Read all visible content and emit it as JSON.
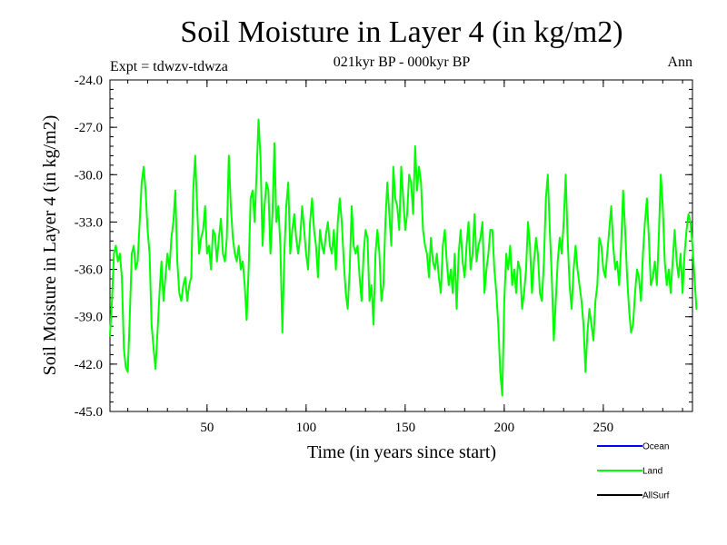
{
  "chart_data": {
    "type": "line",
    "title": "Soil Moisture in Layer 4 (in kg/m2)",
    "subtitle_center": "021kyr BP - 000kyr BP",
    "subtitle_left": "Expt = tdwzv-tdwza",
    "subtitle_right": "Ann",
    "xlabel": "Time (in years since start)",
    "ylabel": "Soil Moisture in Layer 4 (in kg/m2)",
    "xlim": [
      1,
      295
    ],
    "ylim": [
      -45.0,
      -24.0
    ],
    "x_ticks": [
      50,
      100,
      150,
      200,
      250
    ],
    "y_ticks": [
      -45.0,
      -42.0,
      -39.0,
      -36.0,
      -33.0,
      -30.0,
      -27.0,
      -24.0
    ],
    "y_tick_labels": [
      "-45.0",
      "-42.0",
      "-39.0",
      "-36.0",
      "-33.0",
      "-30.0",
      "-27.0",
      "-24.0"
    ],
    "legend_placement": "bottom-right",
    "series": [
      {
        "name": "Ocean",
        "color": "#0000ff",
        "values": []
      },
      {
        "name": "Land",
        "color": "#00ff00",
        "start_year": 1,
        "values": [
          -40.2,
          -38.0,
          -35.0,
          -34.5,
          -35.5,
          -35.0,
          -36.5,
          -41.0,
          -42.2,
          -42.5,
          -39.0,
          -35.0,
          -34.5,
          -36.0,
          -35.5,
          -33.0,
          -30.5,
          -29.5,
          -31.0,
          -33.5,
          -35.0,
          -39.5,
          -41.0,
          -42.3,
          -40.0,
          -37.5,
          -35.5,
          -38.0,
          -36.5,
          -35.0,
          -36.0,
          -34.0,
          -33.0,
          -31.0,
          -35.5,
          -37.5,
          -38.0,
          -37.0,
          -36.5,
          -38.0,
          -37.0,
          -36.5,
          -31.0,
          -28.8,
          -32.0,
          -35.0,
          -34.0,
          -33.5,
          -32.0,
          -35.0,
          -34.5,
          -36.0,
          -33.5,
          -33.8,
          -35.5,
          -34.0,
          -32.8,
          -35.0,
          -35.5,
          -34.0,
          -28.8,
          -32.0,
          -34.0,
          -35.0,
          -35.5,
          -34.5,
          -36.0,
          -35.5,
          -37.0,
          -39.2,
          -36.0,
          -31.5,
          -31.0,
          -33.0,
          -30.0,
          -26.5,
          -29.0,
          -34.5,
          -32.0,
          -30.5,
          -31.0,
          -35.0,
          -32.5,
          -28.0,
          -33.0,
          -32.0,
          -34.5,
          -40.0,
          -35.0,
          -32.0,
          -30.5,
          -35.0,
          -33.5,
          -32.5,
          -34.0,
          -35.0,
          -34.0,
          -32.0,
          -33.5,
          -35.0,
          -36.0,
          -33.0,
          -31.5,
          -33.5,
          -34.5,
          -36.5,
          -33.5,
          -34.5,
          -35.0,
          -33.8,
          -33.0,
          -34.5,
          -35.0,
          -33.5,
          -36.0,
          -33.0,
          -31.5,
          -33.0,
          -35.5,
          -37.5,
          -38.5,
          -36.0,
          -32.0,
          -34.5,
          -35.0,
          -34.5,
          -36.5,
          -38.0,
          -35.0,
          -33.5,
          -34.0,
          -38.0,
          -37.0,
          -39.5,
          -35.0,
          -33.5,
          -35.0,
          -38.0,
          -37.0,
          -33.0,
          -30.5,
          -32.5,
          -34.5,
          -29.5,
          -31.5,
          -32.0,
          -33.5,
          -29.5,
          -31.5,
          -33.5,
          -32.5,
          -30.0,
          -30.5,
          -32.5,
          -28.2,
          -31.0,
          -29.5,
          -30.5,
          -33.5,
          -34.5,
          -35.0,
          -36.5,
          -34.0,
          -35.5,
          -36.0,
          -35.0,
          -36.5,
          -37.5,
          -34.5,
          -33.5,
          -35.5,
          -37.0,
          -36.0,
          -37.5,
          -35.0,
          -38.5,
          -35.0,
          -33.5,
          -35.5,
          -36.5,
          -34.5,
          -33.0,
          -36.0,
          -35.0,
          -32.5,
          -35.5,
          -34.5,
          -34.0,
          -33.0,
          -37.5,
          -36.0,
          -35.0,
          -33.5,
          -33.5,
          -36.0,
          -37.5,
          -39.5,
          -42.5,
          -44.0,
          -38.0,
          -35.0,
          -36.0,
          -34.5,
          -37.0,
          -36.0,
          -37.5,
          -35.5,
          -36.0,
          -38.5,
          -37.5,
          -36.0,
          -33.0,
          -34.5,
          -37.5,
          -35.5,
          -34.0,
          -35.0,
          -37.5,
          -38.0,
          -35.5,
          -31.5,
          -30.0,
          -33.5,
          -36.5,
          -40.5,
          -38.0,
          -35.5,
          -34.0,
          -35.0,
          -33.0,
          -30.0,
          -34.0,
          -37.0,
          -38.5,
          -36.0,
          -34.5,
          -36.0,
          -37.0,
          -38.0,
          -39.5,
          -42.5,
          -40.0,
          -38.5,
          -39.5,
          -40.5,
          -38.0,
          -37.0,
          -34.0,
          -34.5,
          -36.0,
          -36.5,
          -35.0,
          -33.5,
          -32.0,
          -34.5,
          -36.0,
          -35.5,
          -37.0,
          -34.5,
          -31.0,
          -33.5,
          -36.5,
          -38.5,
          -40.0,
          -39.5,
          -37.5,
          -36.0,
          -36.5,
          -38.0,
          -35.0,
          -33.0,
          -31.5,
          -34.0,
          -37.0,
          -36.5,
          -35.5,
          -37.0,
          -34.0,
          -30.0,
          -32.0,
          -35.5,
          -37.0,
          -36.0,
          -37.5,
          -35.5,
          -33.5,
          -35.5,
          -36.5,
          -35.0,
          -37.5,
          -35.0,
          -33.5,
          -32.5,
          -33.0,
          -34.5,
          -36.5,
          -38.5
        ]
      },
      {
        "name": "AllSurf",
        "color": "#000000",
        "values": []
      }
    ]
  }
}
